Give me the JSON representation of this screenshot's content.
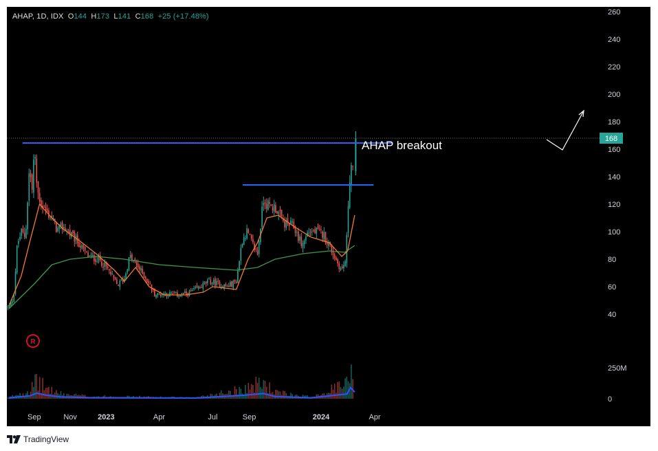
{
  "header": {
    "symbol": "AHAP, 1D, IDX",
    "o_label": "O",
    "o_value": "144",
    "h_label": "H",
    "h_value": "173",
    "l_label": "L",
    "l_value": "141",
    "c_label": "C",
    "c_value": "168",
    "change": "+25 (+17.48%)"
  },
  "footer": {
    "brand": "TradingView"
  },
  "colors": {
    "background": "#000000",
    "up": "#26a69a",
    "down": "#ef5350",
    "ma_fast": "#f57c2a",
    "ma_slow": "#3f9a45",
    "resistance": "#2962ff",
    "volume_ma": "#2b53ff",
    "price_badge": "#26a69a",
    "annotation": "#ffffff",
    "marker": "#d0131c"
  },
  "icons": {
    "marker": "r-circle-icon",
    "logo": "tradingview-logo-icon"
  },
  "chart_data": {
    "type": "candlestick",
    "price_axis": {
      "ticks": [
        "260",
        "240",
        "220",
        "200",
        "180",
        "160",
        "140",
        "120",
        "100",
        "80",
        "60",
        "40"
      ],
      "range": [
        30,
        270
      ]
    },
    "volume_axis": {
      "ticks": [
        "250M",
        "0"
      ],
      "range_millions": [
        0,
        300
      ]
    },
    "time_axis": {
      "labels": [
        "Sep",
        "Nov",
        "2023",
        "Apr",
        "Jul",
        "Sep",
        "2024",
        "Apr"
      ],
      "bold": [
        "2023",
        "2024"
      ]
    },
    "last_price": "168",
    "annotation": "AHAP breakout",
    "marker_label": "R",
    "resistance_levels": [
      {
        "price": 164.5,
        "from": "2022-08-12",
        "to": "2024-04-30"
      },
      {
        "price": 134,
        "from": "2023-08-21",
        "to": "2024-03-30"
      }
    ],
    "close_series": [
      [
        "2022-07-20",
        45
      ],
      [
        "2022-07-28",
        52
      ],
      [
        "2022-08-03",
        90
      ],
      [
        "2022-08-10",
        100
      ],
      [
        "2022-08-17",
        96
      ],
      [
        "2022-08-24",
        148
      ],
      [
        "2022-08-28",
        128
      ],
      [
        "2022-09-01",
        160
      ],
      [
        "2022-09-06",
        130
      ],
      [
        "2022-09-13",
        120
      ],
      [
        "2022-09-22",
        114
      ],
      [
        "2022-10-01",
        110
      ],
      [
        "2022-10-10",
        101
      ],
      [
        "2022-10-20",
        104
      ],
      [
        "2022-11-01",
        98
      ],
      [
        "2022-11-15",
        92
      ],
      [
        "2022-12-01",
        82
      ],
      [
        "2022-12-20",
        80
      ],
      [
        "2023-01-05",
        72
      ],
      [
        "2023-01-20",
        61
      ],
      [
        "2023-02-01",
        66
      ],
      [
        "2023-02-10",
        82
      ],
      [
        "2023-02-25",
        74
      ],
      [
        "2023-03-10",
        66
      ],
      [
        "2023-03-25",
        54
      ],
      [
        "2023-04-10",
        55
      ],
      [
        "2023-05-01",
        54
      ],
      [
        "2023-05-20",
        55
      ],
      [
        "2023-06-10",
        60
      ],
      [
        "2023-06-25",
        64
      ],
      [
        "2023-07-10",
        62
      ],
      [
        "2023-07-25",
        60
      ],
      [
        "2023-08-10",
        64
      ],
      [
        "2023-08-20",
        94
      ],
      [
        "2023-08-28",
        100
      ],
      [
        "2023-09-05",
        92
      ],
      [
        "2023-09-15",
        84
      ],
      [
        "2023-09-25",
        124
      ],
      [
        "2023-10-05",
        118
      ],
      [
        "2023-10-15",
        118
      ],
      [
        "2023-10-30",
        106
      ],
      [
        "2023-11-15",
        104
      ],
      [
        "2023-11-30",
        90
      ],
      [
        "2023-12-10",
        100
      ],
      [
        "2023-12-25",
        100
      ],
      [
        "2024-01-05",
        98
      ],
      [
        "2024-01-15",
        90
      ],
      [
        "2024-01-28",
        78
      ],
      [
        "2024-02-05",
        72
      ],
      [
        "2024-02-12",
        80
      ],
      [
        "2024-02-16",
        120
      ],
      [
        "2024-02-20",
        150
      ],
      [
        "2024-02-24",
        144
      ],
      [
        "2024-02-27",
        168
      ]
    ],
    "ma_fast_series": [
      [
        "2022-07-20",
        46
      ],
      [
        "2022-08-10",
        68
      ],
      [
        "2022-08-24",
        92
      ],
      [
        "2022-09-10",
        120
      ],
      [
        "2022-10-01",
        110
      ],
      [
        "2022-10-20",
        102
      ],
      [
        "2022-11-15",
        94
      ],
      [
        "2022-12-15",
        84
      ],
      [
        "2023-01-15",
        72
      ],
      [
        "2023-02-01",
        64
      ],
      [
        "2023-02-20",
        74
      ],
      [
        "2023-03-15",
        60
      ],
      [
        "2023-04-10",
        54
      ],
      [
        "2023-05-15",
        54
      ],
      [
        "2023-06-15",
        56
      ],
      [
        "2023-07-01",
        60
      ],
      [
        "2023-08-10",
        58
      ],
      [
        "2023-08-30",
        80
      ],
      [
        "2023-09-15",
        92
      ],
      [
        "2023-10-01",
        110
      ],
      [
        "2023-10-20",
        112
      ],
      [
        "2023-11-15",
        104
      ],
      [
        "2023-12-15",
        96
      ],
      [
        "2024-01-15",
        92
      ],
      [
        "2024-02-05",
        82
      ],
      [
        "2024-02-15",
        86
      ],
      [
        "2024-02-27",
        112
      ]
    ],
    "ma_slow_series": [
      [
        "2022-07-20",
        44
      ],
      [
        "2022-09-01",
        62
      ],
      [
        "2022-10-01",
        76
      ],
      [
        "2022-11-01",
        80
      ],
      [
        "2022-12-15",
        82
      ],
      [
        "2023-02-01",
        80
      ],
      [
        "2023-04-01",
        76
      ],
      [
        "2023-06-01",
        74
      ],
      [
        "2023-08-10",
        72
      ],
      [
        "2023-09-15",
        74
      ],
      [
        "2023-10-15",
        80
      ],
      [
        "2023-12-01",
        84
      ],
      [
        "2024-01-15",
        86
      ],
      [
        "2024-02-10",
        85
      ],
      [
        "2024-02-27",
        90
      ]
    ],
    "volume_series_millions": [
      [
        "2022-07-20",
        10
      ],
      [
        "2022-08-05",
        40
      ],
      [
        "2022-08-25",
        70
      ],
      [
        "2022-09-05",
        140
      ],
      [
        "2022-09-20",
        90
      ],
      [
        "2022-10-15",
        40
      ],
      [
        "2022-12-01",
        20
      ],
      [
        "2023-03-01",
        15
      ],
      [
        "2023-06-01",
        8
      ],
      [
        "2023-08-20",
        80
      ],
      [
        "2023-09-25",
        130
      ],
      [
        "2023-10-15",
        50
      ],
      [
        "2023-12-15",
        15
      ],
      [
        "2024-02-14",
        120
      ],
      [
        "2024-02-20",
        290
      ],
      [
        "2024-02-27",
        170
      ]
    ]
  }
}
